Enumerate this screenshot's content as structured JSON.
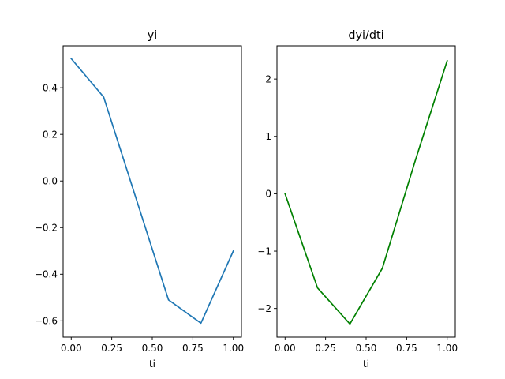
{
  "chart_data": [
    {
      "type": "line",
      "title": "yi",
      "xlabel": "ti",
      "ylabel": "",
      "x": [
        0.0,
        0.2,
        0.4,
        0.6,
        0.8,
        1.0
      ],
      "series": [
        {
          "values": [
            0.525,
            0.36,
            -0.075,
            -0.51,
            -0.61,
            -0.3
          ],
          "color": "#1f77b4"
        }
      ],
      "xlim": [
        -0.05,
        1.05
      ],
      "ylim": [
        -0.67,
        0.58
      ],
      "xticks": [
        0.0,
        0.25,
        0.5,
        0.75,
        1.0
      ],
      "xtick_labels": [
        "0.00",
        "0.25",
        "0.50",
        "0.75",
        "1.00"
      ],
      "yticks": [
        -0.6,
        -0.4,
        -0.2,
        0.0,
        0.2,
        0.4
      ],
      "ytick_labels": [
        "−0.6",
        "−0.4",
        "−0.2",
        "0.0",
        "0.2",
        "0.4"
      ],
      "grid": false
    },
    {
      "type": "line",
      "title": "dyi/dti",
      "xlabel": "ti",
      "ylabel": "",
      "x": [
        0.0,
        0.2,
        0.4,
        0.6,
        0.8,
        1.0
      ],
      "series": [
        {
          "values": [
            0.0,
            -1.64,
            -2.27,
            -1.3,
            0.55,
            2.32
          ],
          "color": "#008000"
        }
      ],
      "xlim": [
        -0.05,
        1.05
      ],
      "ylim": [
        -2.5,
        2.58
      ],
      "xticks": [
        0.0,
        0.25,
        0.5,
        0.75,
        1.0
      ],
      "xtick_labels": [
        "0.00",
        "0.25",
        "0.50",
        "0.75",
        "1.00"
      ],
      "yticks": [
        -2,
        -1,
        0,
        1,
        2
      ],
      "ytick_labels": [
        "−2",
        "−1",
        "0",
        "1",
        "2"
      ],
      "grid": false
    }
  ]
}
